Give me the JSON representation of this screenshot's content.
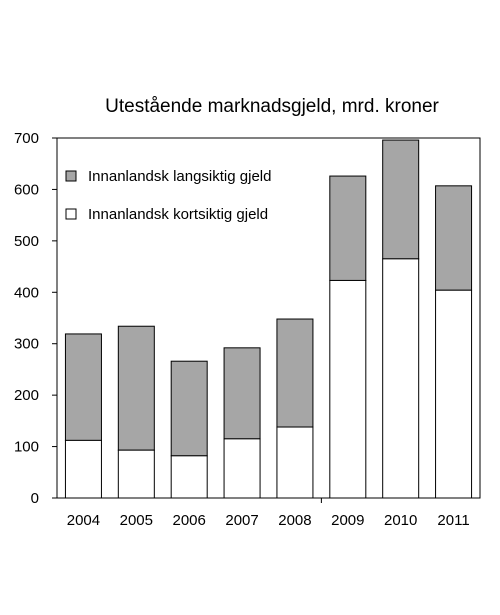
{
  "chart_data": {
    "type": "bar",
    "stacked": true,
    "title": "Utestående marknadsgjeld, mrd. kroner",
    "xlabel": "",
    "ylabel": "",
    "ylim": [
      0,
      700
    ],
    "yticks": [
      0,
      100,
      200,
      300,
      400,
      500,
      600,
      700
    ],
    "grid": false,
    "legend_position": "top-left",
    "categories": [
      "2004",
      "2005",
      "2006",
      "2007",
      "2008",
      "2009",
      "2010",
      "2011"
    ],
    "series": [
      {
        "name": "Innanlandsk kortsiktig gjeld",
        "color": "#ffffff",
        "values": [
          112,
          93,
          82,
          115,
          138,
          423,
          465,
          404
        ]
      },
      {
        "name": "Innanlandsk langsiktig gjeld",
        "color": "#a6a6a6",
        "values": [
          207,
          241,
          184,
          177,
          210,
          203,
          231,
          203
        ]
      }
    ]
  }
}
